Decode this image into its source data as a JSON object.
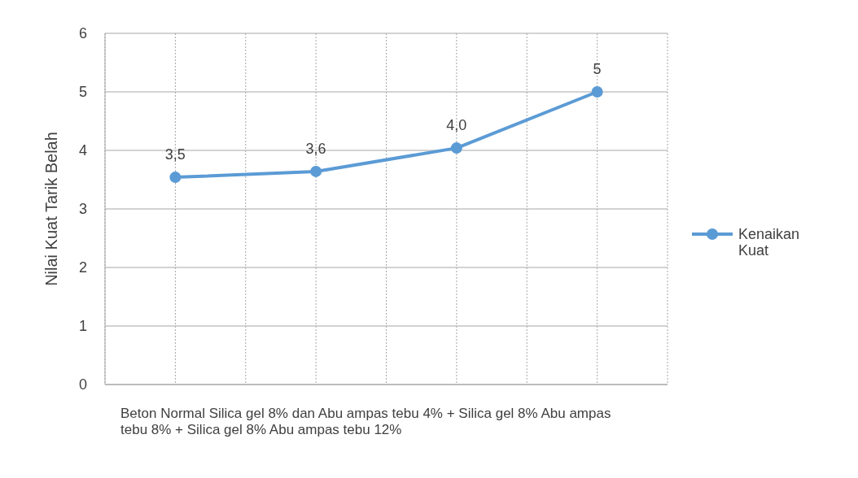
{
  "chart_data": {
    "type": "line",
    "xlabel": "Beton Normal Silica gel 8% dan Abu ampas tebu 4% + Silica gel 8% Abu ampas tebu 8% + Silica gel 8% Abu ampas tebu 12%",
    "ylabel": "Nilai Kuat Tarik Belah",
    "categories": [
      null,
      null,
      null,
      null
    ],
    "series": [
      {
        "name": "Kenaikan Kuat",
        "color": "#5b9bd5",
        "values": [
          3.54,
          3.64,
          4.04,
          5
        ],
        "value_labels": [
          "3,5",
          "3,6",
          "4,0",
          "5"
        ]
      }
    ],
    "ylim": [
      0,
      6
    ],
    "yticks": [
      0,
      1,
      2,
      3,
      4,
      5,
      6
    ],
    "grid": true,
    "legend": "right",
    "marker": "circle",
    "line_style": "solid"
  }
}
